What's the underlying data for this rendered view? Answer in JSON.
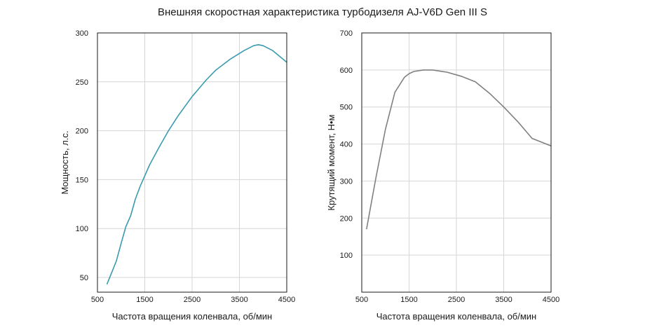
{
  "figure_title": "Внешняя скоростная характеристика турбодизеля AJ-V6D Gen III S",
  "chart_data": [
    {
      "type": "line",
      "xlabel": "Частота вращения коленвала, об/мин",
      "ylabel": "Мощность, л.с.",
      "xlim": [
        500,
        4500
      ],
      "ylim": [
        35,
        300
      ],
      "xticks": [
        500,
        1500,
        2500,
        3500,
        4500
      ],
      "yticks": [
        50,
        100,
        150,
        200,
        250,
        300
      ],
      "grid": true,
      "series": [
        {
          "color": "#3a9bb0",
          "x": [
            700,
            800,
            900,
            1000,
            1100,
            1200,
            1300,
            1400,
            1600,
            1800,
            2000,
            2200,
            2500,
            2800,
            3000,
            3300,
            3600,
            3800,
            3900,
            4000,
            4200,
            4400,
            4500
          ],
          "y": [
            43,
            55,
            67,
            85,
            102,
            113,
            130,
            143,
            165,
            183,
            200,
            215,
            235,
            252,
            262,
            273,
            282,
            287,
            288,
            287,
            282,
            274,
            270
          ]
        }
      ]
    },
    {
      "type": "line",
      "xlabel": "Частота вращения коленвала, об/мин",
      "ylabel": "Крутящий момент, Н•м",
      "xlim": [
        500,
        4500
      ],
      "ylim": [
        0,
        700
      ],
      "xticks": [
        500,
        1500,
        2500,
        3500,
        4500
      ],
      "yticks": [
        100,
        200,
        300,
        400,
        500,
        600,
        700
      ],
      "grid": true,
      "series": [
        {
          "color": "#808080",
          "x": [
            600,
            800,
            1000,
            1200,
            1400,
            1500,
            1600,
            1800,
            2000,
            2300,
            2600,
            2900,
            3200,
            3500,
            3800,
            4100,
            4500
          ],
          "y": [
            170,
            310,
            440,
            540,
            580,
            590,
            596,
            600,
            600,
            594,
            583,
            568,
            537,
            500,
            460,
            415,
            395
          ]
        }
      ]
    }
  ]
}
